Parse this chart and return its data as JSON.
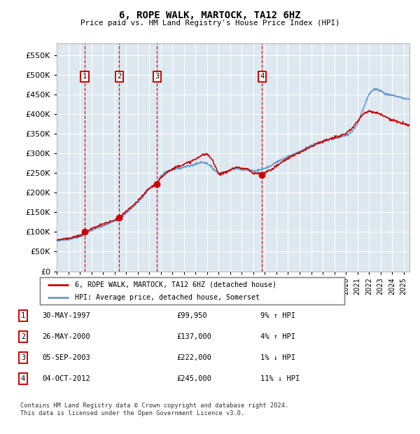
{
  "title": "6, ROPE WALK, MARTOCK, TA12 6HZ",
  "subtitle": "Price paid vs. HM Land Registry's House Price Index (HPI)",
  "legend_label_red": "6, ROPE WALK, MARTOCK, TA12 6HZ (detached house)",
  "legend_label_blue": "HPI: Average price, detached house, Somerset",
  "footer": "Contains HM Land Registry data © Crown copyright and database right 2024.\nThis data is licensed under the Open Government Licence v3.0.",
  "transactions": [
    {
      "num": 1,
      "date": "30-MAY-1997",
      "price": 99950,
      "hpi_pct": "9% ↑ HPI",
      "year": 1997.41
    },
    {
      "num": 2,
      "date": "26-MAY-2000",
      "price": 137000,
      "hpi_pct": "4% ↑ HPI",
      "year": 2000.41
    },
    {
      "num": 3,
      "date": "05-SEP-2003",
      "price": 222000,
      "hpi_pct": "1% ↓ HPI",
      "year": 2003.68
    },
    {
      "num": 4,
      "date": "04-OCT-2012",
      "price": 245000,
      "hpi_pct": "11% ↓ HPI",
      "year": 2012.76
    }
  ],
  "red_color": "#cc0000",
  "blue_color": "#6699cc",
  "vline_color": "#cc0000",
  "bg_color": "#dde8f0",
  "grid_color": "#ffffff",
  "box_color": "#cc0000",
  "ylim": [
    0,
    580000
  ],
  "yticks": [
    0,
    50000,
    100000,
    150000,
    200000,
    250000,
    300000,
    350000,
    400000,
    450000,
    500000,
    550000
  ],
  "xlim_start": 1995.0,
  "xlim_end": 2025.5,
  "hpi_base_points": [
    [
      1995.0,
      78000
    ],
    [
      1996.0,
      82000
    ],
    [
      1997.0,
      88000
    ],
    [
      1997.5,
      95000
    ],
    [
      1998.0,
      104000
    ],
    [
      1999.0,
      115000
    ],
    [
      2000.0,
      128000
    ],
    [
      2000.5,
      135000
    ],
    [
      2001.0,
      148000
    ],
    [
      2002.0,
      175000
    ],
    [
      2003.0,
      210000
    ],
    [
      2003.7,
      225000
    ],
    [
      2004.0,
      242000
    ],
    [
      2004.5,
      255000
    ],
    [
      2005.0,
      258000
    ],
    [
      2005.5,
      262000
    ],
    [
      2006.0,
      265000
    ],
    [
      2006.5,
      268000
    ],
    [
      2007.0,
      272000
    ],
    [
      2007.5,
      278000
    ],
    [
      2008.0,
      275000
    ],
    [
      2008.5,
      262000
    ],
    [
      2009.0,
      248000
    ],
    [
      2009.5,
      252000
    ],
    [
      2010.0,
      258000
    ],
    [
      2010.5,
      262000
    ],
    [
      2011.0,
      260000
    ],
    [
      2011.5,
      258000
    ],
    [
      2012.0,
      255000
    ],
    [
      2012.5,
      258000
    ],
    [
      2013.0,
      262000
    ],
    [
      2013.5,
      268000
    ],
    [
      2014.0,
      278000
    ],
    [
      2014.5,
      285000
    ],
    [
      2015.0,
      292000
    ],
    [
      2015.5,
      298000
    ],
    [
      2016.0,
      305000
    ],
    [
      2016.5,
      312000
    ],
    [
      2017.0,
      320000
    ],
    [
      2017.5,
      325000
    ],
    [
      2018.0,
      330000
    ],
    [
      2018.5,
      335000
    ],
    [
      2019.0,
      338000
    ],
    [
      2019.5,
      342000
    ],
    [
      2020.0,
      345000
    ],
    [
      2020.5,
      355000
    ],
    [
      2021.0,
      375000
    ],
    [
      2021.5,
      415000
    ],
    [
      2022.0,
      450000
    ],
    [
      2022.5,
      465000
    ],
    [
      2023.0,
      460000
    ],
    [
      2023.5,
      450000
    ],
    [
      2024.0,
      448000
    ],
    [
      2024.5,
      445000
    ],
    [
      2025.0,
      440000
    ],
    [
      2025.5,
      438000
    ]
  ],
  "red_base_points": [
    [
      1995.0,
      80000
    ],
    [
      1996.0,
      84000
    ],
    [
      1997.0,
      90000
    ],
    [
      1997.41,
      99950
    ],
    [
      1998.0,
      108000
    ],
    [
      1999.0,
      120000
    ],
    [
      2000.0,
      130000
    ],
    [
      2000.41,
      137000
    ],
    [
      2001.0,
      152000
    ],
    [
      2002.0,
      178000
    ],
    [
      2003.0,
      212000
    ],
    [
      2003.68,
      222000
    ],
    [
      2004.0,
      238000
    ],
    [
      2004.5,
      252000
    ],
    [
      2005.0,
      260000
    ],
    [
      2005.5,
      268000
    ],
    [
      2006.0,
      272000
    ],
    [
      2006.5,
      278000
    ],
    [
      2007.0,
      285000
    ],
    [
      2007.5,
      295000
    ],
    [
      2008.0,
      298000
    ],
    [
      2008.5,
      282000
    ],
    [
      2009.0,
      248000
    ],
    [
      2009.5,
      250000
    ],
    [
      2010.0,
      258000
    ],
    [
      2010.5,
      265000
    ],
    [
      2011.0,
      262000
    ],
    [
      2011.5,
      260000
    ],
    [
      2012.0,
      248000
    ],
    [
      2012.5,
      250000
    ],
    [
      2012.76,
      245000
    ],
    [
      2013.0,
      252000
    ],
    [
      2013.5,
      258000
    ],
    [
      2014.0,
      268000
    ],
    [
      2014.5,
      278000
    ],
    [
      2015.0,
      288000
    ],
    [
      2015.5,
      295000
    ],
    [
      2016.0,
      302000
    ],
    [
      2016.5,
      310000
    ],
    [
      2017.0,
      318000
    ],
    [
      2017.5,
      325000
    ],
    [
      2018.0,
      330000
    ],
    [
      2018.5,
      335000
    ],
    [
      2019.0,
      340000
    ],
    [
      2019.5,
      345000
    ],
    [
      2020.0,
      350000
    ],
    [
      2020.5,
      362000
    ],
    [
      2021.0,
      382000
    ],
    [
      2021.5,
      400000
    ],
    [
      2022.0,
      408000
    ],
    [
      2022.5,
      405000
    ],
    [
      2023.0,
      400000
    ],
    [
      2023.5,
      392000
    ],
    [
      2024.0,
      385000
    ],
    [
      2024.5,
      380000
    ],
    [
      2025.0,
      375000
    ],
    [
      2025.5,
      372000
    ]
  ]
}
